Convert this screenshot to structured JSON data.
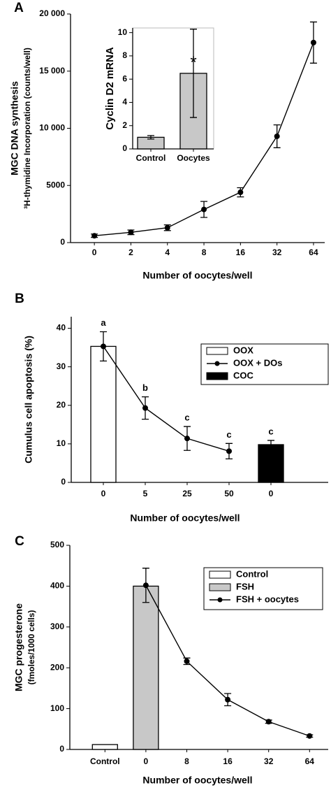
{
  "chart_data": [
    {
      "type": "line",
      "panel_label": "A",
      "ylabel": [
        "MGC DNA synthesis",
        "³H-thymidine Incorporation (counts/well)"
      ],
      "xlabel": "Number of oocytes/well",
      "categories": [
        "0",
        "2",
        "4",
        "8",
        "16",
        "32",
        "64"
      ],
      "series": [
        {
          "color": "#000000",
          "style": "line",
          "values": [
            600,
            900,
            1300,
            2900,
            4400,
            9300,
            17500
          ],
          "errors": [
            150,
            200,
            250,
            700,
            400,
            1000,
            1800
          ]
        }
      ],
      "ylim": [
        0,
        20000
      ],
      "yticks": [
        0,
        5000,
        {
          "value": 10000,
          "label": "10 000"
        },
        {
          "value": 15000,
          "label": "15 000"
        },
        {
          "value": 20000,
          "label": "20 000"
        }
      ]
    },
    {
      "type": "bar",
      "ylabel": [
        "Cyclin D2 mRNA"
      ],
      "categories": [
        "Control",
        "Oocytes"
      ],
      "series": [
        {
          "color": "#c8c8c8",
          "style": "bar",
          "values": [
            1.0,
            6.5
          ],
          "errors": [
            0.15,
            3.8
          ]
        }
      ],
      "annotations": [
        null,
        "*"
      ],
      "ylim": [
        0,
        10.4
      ],
      "yticks": [
        0,
        2,
        4,
        6,
        8,
        10
      ]
    },
    {
      "type": "combo",
      "panel_label": "B",
      "ylabel": [
        "Cumulus cell apoptosis (%)"
      ],
      "xlabel": "Number of oocytes/well",
      "categories": [
        "0",
        "5",
        "25",
        "50",
        "0"
      ],
      "series": [
        {
          "name": "OOX",
          "color": "#ffffff",
          "style": "bar",
          "values": [
            35.3,
            null,
            null,
            null,
            null
          ],
          "errors": [
            null,
            null,
            null,
            null,
            null
          ]
        },
        {
          "name": "OOX + DOs",
          "color": "#000000",
          "style": "line",
          "values": [
            35.3,
            19.3,
            11.4,
            8.1,
            null
          ],
          "errors": [
            3.8,
            2.9,
            3.1,
            2.0,
            null
          ]
        },
        {
          "name": "COC",
          "color": "#000000",
          "style": "bar",
          "values": [
            null,
            null,
            null,
            null,
            9.8
          ],
          "errors": [
            null,
            null,
            null,
            null,
            1.1
          ]
        }
      ],
      "annotations": [
        "a",
        "b",
        "c",
        "c",
        "c"
      ],
      "legend": "upper right",
      "ylim": [
        0,
        43
      ],
      "yticks": [
        0,
        10,
        20,
        30,
        40
      ]
    },
    {
      "type": "combo",
      "panel_label": "C",
      "ylabel": [
        "MGC progesterone",
        "(fmoles/1000 cells)"
      ],
      "xlabel": "Number of oocytes/well",
      "categories": [
        "Control",
        "0",
        "8",
        "16",
        "32",
        "64"
      ],
      "series": [
        {
          "name": "Control",
          "color": "#ffffff",
          "style": "bar",
          "values": [
            12,
            null,
            null,
            null,
            null,
            null
          ],
          "errors": [
            null,
            null,
            null,
            null,
            null,
            null
          ]
        },
        {
          "name": "FSH",
          "color": "#c8c8c8",
          "style": "bar",
          "values": [
            null,
            400,
            null,
            null,
            null,
            null
          ],
          "errors": [
            null,
            null,
            null,
            null,
            null,
            null
          ]
        },
        {
          "name": "FSH + oocytes",
          "color": "#000000",
          "style": "line",
          "values": [
            null,
            402,
            216,
            122,
            68,
            33
          ],
          "errors": [
            null,
            42,
            8,
            15,
            4,
            3
          ]
        }
      ],
      "legend": "upper right",
      "ylim": [
        0,
        500
      ],
      "yticks": [
        0,
        100,
        200,
        300,
        400,
        500
      ]
    }
  ]
}
